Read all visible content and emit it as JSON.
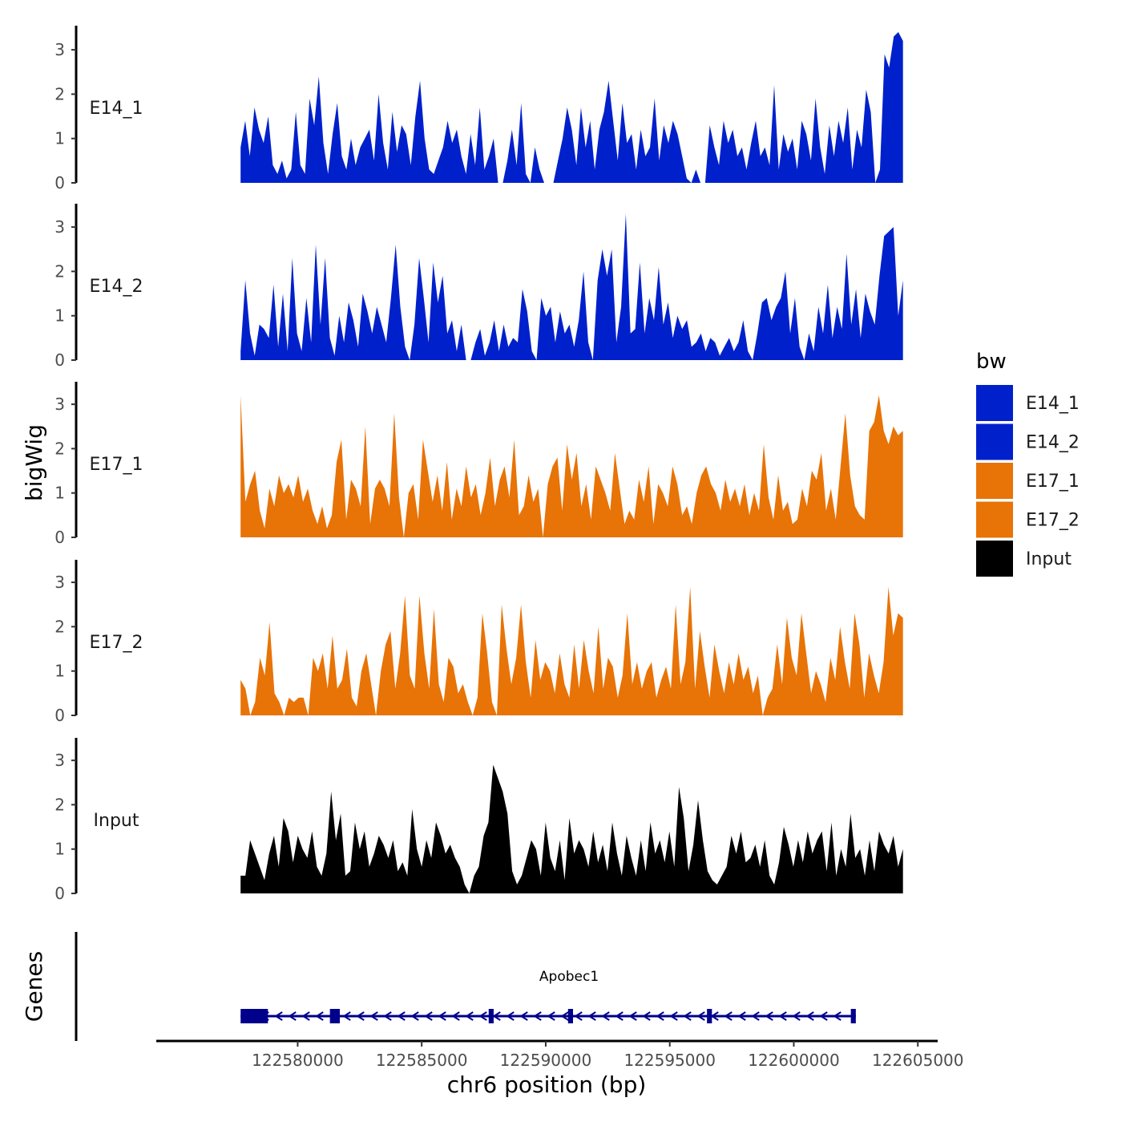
{
  "chart_data": {
    "type": "area",
    "title": "",
    "ylabel": "bigWig",
    "genes_label": "Genes",
    "xlabel": "chr6 position (bp)",
    "xlim": [
      122574300,
      122605800
    ],
    "ylim": [
      0,
      3.5
    ],
    "yticks": [
      0,
      1,
      2,
      3
    ],
    "xticks": [
      122580000,
      122585000,
      122590000,
      122595000,
      122600000,
      122605000
    ],
    "xtick_labels": [
      "122580000",
      "122585000",
      "122590000",
      "122595000",
      "122600000",
      "122605000"
    ],
    "legend": {
      "title": "bw",
      "position": "right",
      "entries": [
        {
          "label": "E14_1",
          "color": "#0020cc"
        },
        {
          "label": "E14_2",
          "color": "#0020cc"
        },
        {
          "label": "E17_1",
          "color": "#e87306"
        },
        {
          "label": "E17_2",
          "color": "#e87306"
        },
        {
          "label": "Input",
          "color": "#000000"
        }
      ]
    },
    "series": [
      {
        "name": "E14_1",
        "color": "#0020cc",
        "x_start": 122577700,
        "x_end": 122604400,
        "values": [
          0.8,
          1.4,
          0.6,
          1.7,
          1.2,
          0.9,
          1.5,
          0.4,
          0.2,
          0.5,
          0.1,
          0.3,
          1.6,
          0.4,
          0.2,
          1.9,
          1.3,
          2.4,
          0.9,
          0.2,
          1.1,
          1.8,
          0.6,
          0.3,
          1.0,
          0.4,
          0.8,
          1.0,
          1.2,
          0.5,
          2.0,
          0.9,
          0.3,
          1.6,
          0.7,
          1.3,
          1.1,
          0.4,
          1.5,
          2.3,
          1.0,
          0.3,
          0.2,
          0.5,
          0.8,
          1.4,
          0.9,
          1.2,
          0.6,
          0.2,
          1.1,
          0.4,
          1.7,
          0.3,
          0.6,
          1.0,
          0.0,
          0.0,
          0.5,
          1.2,
          0.4,
          1.8,
          0.2,
          0.0,
          0.8,
          0.3,
          0.0,
          0.0,
          0.0,
          0.5,
          1.0,
          1.7,
          1.2,
          0.4,
          1.7,
          0.8,
          1.4,
          0.3,
          1.2,
          1.6,
          2.3,
          1.4,
          0.5,
          1.8,
          0.9,
          1.1,
          0.3,
          1.2,
          0.6,
          0.8,
          1.9,
          0.5,
          1.3,
          0.9,
          1.4,
          1.1,
          0.6,
          0.1,
          0.0,
          0.3,
          0.0,
          0.0,
          1.3,
          0.8,
          0.4,
          1.4,
          0.9,
          1.2,
          0.6,
          0.8,
          0.3,
          0.9,
          1.4,
          0.6,
          0.8,
          0.4,
          2.2,
          0.3,
          1.1,
          0.7,
          1.0,
          0.3,
          1.4,
          1.1,
          0.5,
          1.9,
          0.8,
          0.2,
          1.3,
          0.6,
          1.4,
          0.9,
          1.7,
          0.3,
          1.2,
          0.8,
          2.1,
          1.6,
          0.0,
          0.3,
          2.9,
          2.6,
          3.3,
          3.4,
          3.2
        ]
      },
      {
        "name": "E14_2",
        "color": "#0020cc",
        "x_start": 122577700,
        "x_end": 122604400,
        "values": [
          0.2,
          1.8,
          0.6,
          0.1,
          0.8,
          0.7,
          0.5,
          1.7,
          0.3,
          1.5,
          0.2,
          2.3,
          0.6,
          0.2,
          1.4,
          0.4,
          2.6,
          0.8,
          2.3,
          0.5,
          0.1,
          1.0,
          0.4,
          1.3,
          0.9,
          0.3,
          1.5,
          1.1,
          0.6,
          1.2,
          0.8,
          0.4,
          1.4,
          2.6,
          1.2,
          0.3,
          0.0,
          0.8,
          2.3,
          1.4,
          0.4,
          2.2,
          1.3,
          1.9,
          0.6,
          0.9,
          0.2,
          0.8,
          0.0,
          0.0,
          0.4,
          0.7,
          0.1,
          0.4,
          0.9,
          0.2,
          0.8,
          0.3,
          0.5,
          0.4,
          1.6,
          1.1,
          0.2,
          0.0,
          1.4,
          1.0,
          1.2,
          0.4,
          1.1,
          0.6,
          0.8,
          0.3,
          0.9,
          2.0,
          0.4,
          0.0,
          1.8,
          2.5,
          1.9,
          2.5,
          0.4,
          1.2,
          3.3,
          0.6,
          0.7,
          2.2,
          0.6,
          1.4,
          0.9,
          2.1,
          0.8,
          1.3,
          0.5,
          1.0,
          0.7,
          0.9,
          0.3,
          0.4,
          0.6,
          0.2,
          0.5,
          0.4,
          0.1,
          0.3,
          0.5,
          0.2,
          0.4,
          0.9,
          0.2,
          0.0,
          0.6,
          1.3,
          1.4,
          0.9,
          1.2,
          1.4,
          2.0,
          0.6,
          1.4,
          0.3,
          0.0,
          0.6,
          0.2,
          1.2,
          0.6,
          1.7,
          0.5,
          1.2,
          0.7,
          2.4,
          0.8,
          1.6,
          0.5,
          1.5,
          1.1,
          0.8,
          1.9,
          2.8,
          2.9,
          3.0,
          1.0,
          1.8
        ]
      },
      {
        "name": "E17_1",
        "color": "#e87306",
        "x_start": 122577700,
        "x_end": 122604400,
        "values": [
          3.2,
          0.8,
          1.2,
          1.5,
          0.6,
          0.2,
          1.1,
          0.7,
          1.4,
          1.0,
          1.2,
          0.9,
          1.4,
          0.8,
          1.1,
          0.6,
          0.3,
          0.7,
          0.2,
          0.5,
          1.7,
          2.2,
          0.4,
          1.3,
          1.1,
          0.7,
          2.5,
          0.3,
          1.1,
          1.3,
          1.1,
          0.7,
          2.8,
          0.9,
          0.0,
          1.0,
          1.2,
          0.4,
          2.2,
          1.5,
          0.8,
          1.4,
          0.6,
          1.7,
          0.4,
          1.1,
          0.7,
          1.6,
          0.9,
          1.2,
          0.5,
          1.0,
          1.8,
          0.7,
          1.3,
          1.6,
          0.9,
          2.2,
          0.5,
          0.7,
          1.4,
          0.8,
          1.1,
          0.0,
          1.2,
          1.6,
          1.8,
          0.6,
          2.1,
          1.3,
          1.9,
          0.7,
          1.2,
          0.4,
          1.6,
          1.3,
          1.0,
          0.6,
          1.9,
          1.1,
          0.3,
          0.6,
          0.4,
          1.3,
          0.8,
          1.6,
          0.3,
          1.2,
          1.0,
          0.7,
          1.6,
          1.2,
          0.5,
          0.7,
          0.3,
          1.0,
          1.4,
          1.6,
          1.2,
          1.0,
          0.6,
          1.3,
          0.8,
          1.1,
          0.7,
          1.2,
          0.5,
          1.0,
          0.6,
          2.1,
          0.9,
          0.4,
          1.4,
          0.6,
          0.8,
          0.3,
          0.4,
          1.1,
          0.7,
          1.5,
          1.3,
          1.9,
          0.6,
          1.1,
          0.4,
          1.6,
          2.8,
          1.4,
          0.7,
          0.5,
          0.4,
          2.4,
          2.6,
          3.2,
          2.4,
          2.1,
          2.5,
          2.3,
          2.4
        ]
      },
      {
        "name": "E17_2",
        "color": "#e87306",
        "x_start": 122577700,
        "x_end": 122604400,
        "values": [
          0.8,
          0.6,
          0.0,
          0.3,
          1.3,
          0.9,
          2.1,
          0.5,
          0.3,
          0.0,
          0.4,
          0.3,
          0.4,
          0.4,
          0.0,
          1.3,
          1.0,
          1.4,
          0.6,
          1.8,
          0.6,
          0.8,
          1.5,
          0.4,
          0.2,
          1.0,
          1.4,
          0.7,
          0.0,
          1.0,
          1.6,
          1.9,
          0.6,
          1.4,
          2.7,
          0.9,
          0.6,
          2.7,
          1.4,
          0.6,
          2.4,
          0.7,
          0.3,
          1.3,
          1.1,
          0.5,
          0.7,
          0.3,
          0.0,
          0.4,
          2.3,
          1.4,
          0.3,
          0.0,
          2.5,
          1.5,
          0.7,
          1.3,
          2.5,
          1.2,
          0.4,
          1.7,
          0.8,
          1.2,
          1.0,
          0.5,
          1.4,
          0.7,
          0.4,
          1.6,
          0.6,
          1.7,
          1.0,
          0.5,
          2.0,
          0.6,
          1.3,
          1.1,
          0.4,
          0.9,
          2.3,
          0.7,
          1.2,
          0.6,
          1.0,
          1.2,
          0.4,
          0.8,
          1.1,
          0.6,
          2.5,
          0.7,
          1.2,
          2.9,
          0.6,
          1.9,
          1.1,
          0.4,
          1.6,
          1.0,
          0.5,
          1.2,
          0.7,
          1.4,
          0.8,
          1.1,
          0.5,
          0.9,
          0.0,
          0.4,
          0.6,
          1.6,
          0.7,
          2.2,
          1.3,
          0.9,
          2.3,
          1.4,
          0.5,
          1.0,
          0.7,
          0.3,
          1.3,
          0.8,
          2.0,
          1.2,
          0.6,
          2.3,
          1.6,
          0.4,
          1.4,
          0.9,
          0.5,
          1.2,
          2.9,
          1.8,
          2.3,
          2.2
        ]
      },
      {
        "name": "Input",
        "color": "#000000",
        "x_start": 122577700,
        "x_end": 122604400,
        "values": [
          0.4,
          0.4,
          1.2,
          0.9,
          0.6,
          0.3,
          0.9,
          1.3,
          0.6,
          1.7,
          1.4,
          0.7,
          1.3,
          1.0,
          0.8,
          1.4,
          0.6,
          0.4,
          0.9,
          2.3,
          1.2,
          1.8,
          0.4,
          0.5,
          1.6,
          1.0,
          1.4,
          0.6,
          0.9,
          1.3,
          1.1,
          0.8,
          1.2,
          0.5,
          0.7,
          0.4,
          1.9,
          1.0,
          0.6,
          1.2,
          0.8,
          1.6,
          1.3,
          0.9,
          1.1,
          0.8,
          0.6,
          0.2,
          0.0,
          0.4,
          0.6,
          1.3,
          1.6,
          2.9,
          2.6,
          2.3,
          1.8,
          0.5,
          0.2,
          0.4,
          0.8,
          1.2,
          1.0,
          0.4,
          1.6,
          0.8,
          0.5,
          1.2,
          0.3,
          1.7,
          0.9,
          1.2,
          1.0,
          0.6,
          1.4,
          0.7,
          1.1,
          0.5,
          1.6,
          0.9,
          0.4,
          1.3,
          0.8,
          0.4,
          1.2,
          0.5,
          1.6,
          0.9,
          1.2,
          0.7,
          1.4,
          0.6,
          2.4,
          1.7,
          0.5,
          1.1,
          2.1,
          1.2,
          0.5,
          0.3,
          0.2,
          0.4,
          0.6,
          1.3,
          0.9,
          1.4,
          0.7,
          0.8,
          1.1,
          0.6,
          1.2,
          0.4,
          0.2,
          0.7,
          1.5,
          1.1,
          0.6,
          1.2,
          0.7,
          1.4,
          0.9,
          1.2,
          1.4,
          0.5,
          1.6,
          0.4,
          1.0,
          0.6,
          1.8,
          0.8,
          1.0,
          0.4,
          1.2,
          0.5,
          1.4,
          1.1,
          0.9,
          1.3,
          0.6,
          1.0
        ]
      }
    ],
    "genes": [
      {
        "name": "Apobec1",
        "strand": "-",
        "start": 122577700,
        "end": 122602500,
        "exons": [
          {
            "start": 122577700,
            "end": 122578800
          },
          {
            "start": 122581300,
            "end": 122581700
          },
          {
            "start": 122587700,
            "end": 122587900
          },
          {
            "start": 122590900,
            "end": 122591100
          },
          {
            "start": 122596500,
            "end": 122596700
          },
          {
            "start": 122602300,
            "end": 122602500
          }
        ],
        "exon_color": "#00008b"
      }
    ]
  }
}
